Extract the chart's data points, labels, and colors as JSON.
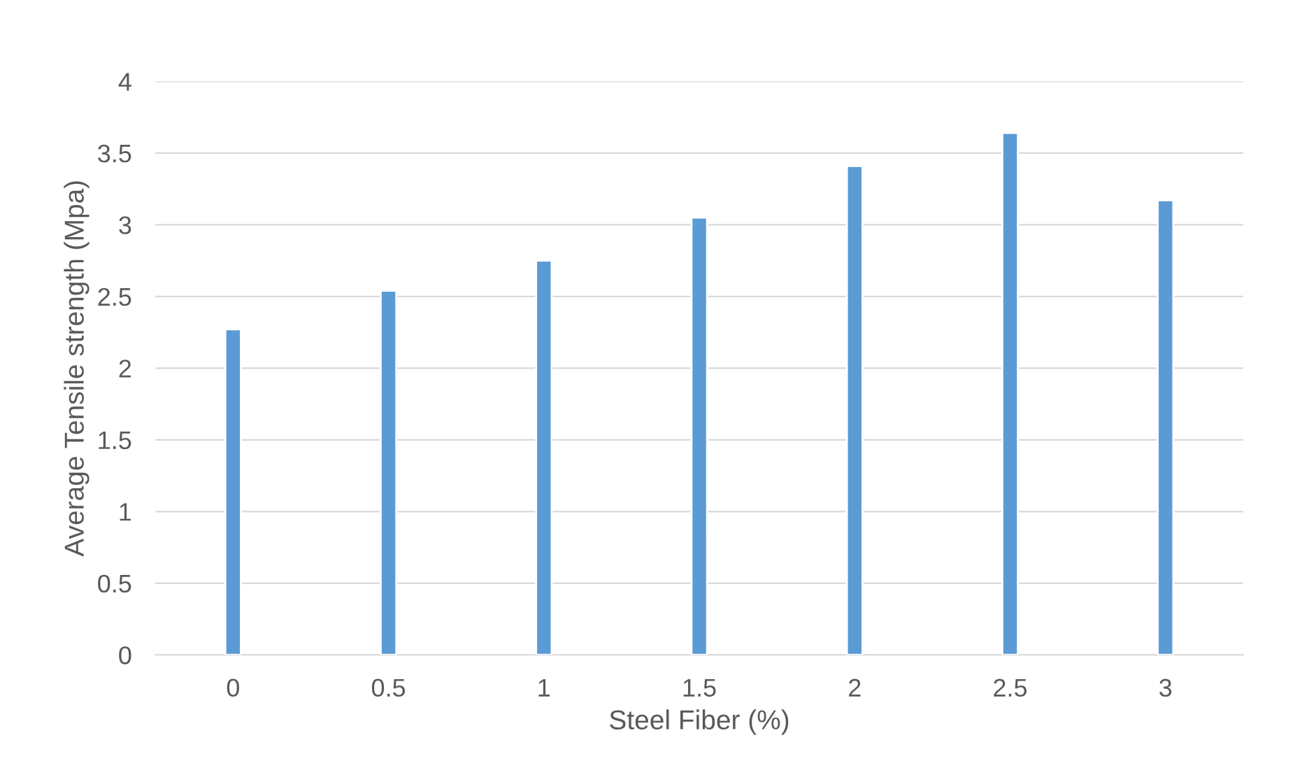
{
  "chart_data": {
    "type": "bar",
    "xlabel": "Steel Fiber (%)",
    "ylabel": "Average Tensile strength (Mpa)",
    "categories": [
      "0",
      "0.5",
      "1",
      "1.5",
      "2",
      "2.5",
      "3"
    ],
    "values": [
      2.27,
      2.54,
      2.75,
      3.05,
      3.41,
      3.64,
      3.17
    ],
    "color": "#5b9bd5",
    "ylim": [
      0,
      4
    ],
    "yticks": [
      0,
      0.5,
      1,
      1.5,
      2,
      2.5,
      3,
      3.5,
      4
    ],
    "grid": "y",
    "legend": false
  }
}
